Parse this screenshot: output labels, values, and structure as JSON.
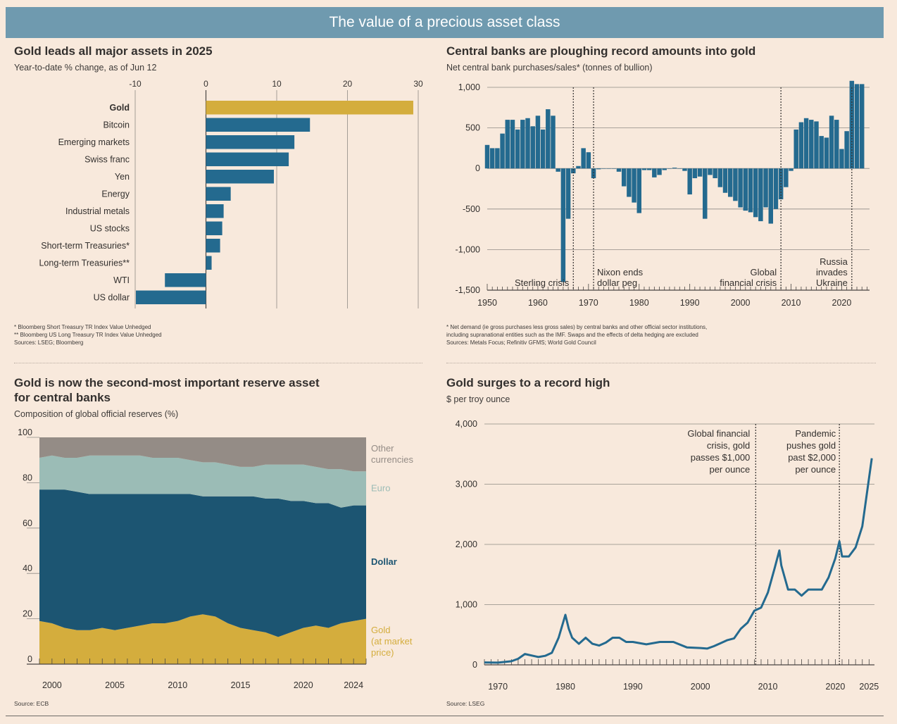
{
  "header": {
    "title": "The value of a precious asset class"
  },
  "colors": {
    "banner": "#6f9aaf",
    "blue": "#246a8f",
    "gold": "#d4ad3d",
    "teal": "#9bbcb6",
    "grey": "#948c86",
    "navy": "#1c5572",
    "background": "#f8e9dc"
  },
  "panels": {
    "assets": {
      "title": "Gold leads all major assets in 2025",
      "subtitle": "Year-to-date % change, as of Jun 12",
      "notes": "* Bloomberg Short Treasury TR Index Value Unhedged\n** Bloomberg US Long Treasury TR Index Value Unhedged\nSources: LSEG; Bloomberg"
    },
    "central": {
      "title": "Central banks are ploughing record amounts into gold",
      "subtitle": "Net central bank purchases/sales* (tonnes of bullion)",
      "notes": "* Net demand (ie gross purchases less gross sales) by central banks and other official sector institutions,\nincluding supranational entities such as the IMF. Swaps and the effects of delta hedging are excluded\nSources: Metals Focus; Refinitiv GFMS; World Gold Council"
    },
    "reserves": {
      "title": "Gold is now the second-most important reserve asset\nfor central banks",
      "subtitle": "Composition of global official reserves (%)",
      "source": "Source: ECB"
    },
    "price": {
      "title": "Gold surges to a record high",
      "subtitle": "$ per troy ounce",
      "source": "Source: LSEG"
    }
  },
  "chart_data": [
    {
      "type": "bar",
      "orientation": "horizontal",
      "title": "Gold leads all major assets in 2025",
      "subtitle": "Year-to-date % change, as of Jun 12",
      "categories": [
        "Gold",
        "Bitcoin",
        "Emerging markets",
        "Swiss franc",
        "Yen",
        "Energy",
        "Industrial metals",
        "US stocks",
        "Short-term Treasuries*",
        "Long-term Treasuries**",
        "WTI",
        "US dollar"
      ],
      "values": [
        29.3,
        14.7,
        12.5,
        11.7,
        9.6,
        3.5,
        2.5,
        2.3,
        2.0,
        0.8,
        -5.8,
        -9.9
      ],
      "xlim": [
        -10,
        30
      ],
      "xticks": [
        -10,
        0,
        10,
        20,
        30
      ],
      "highlight": "Gold"
    },
    {
      "type": "bar",
      "title": "Central banks are ploughing record amounts into gold",
      "subtitle": "Net central bank purchases/sales* (tonnes of bullion)",
      "x": [
        1950,
        1951,
        1952,
        1953,
        1954,
        1955,
        1956,
        1957,
        1958,
        1959,
        1960,
        1961,
        1962,
        1963,
        1964,
        1965,
        1966,
        1967,
        1968,
        1969,
        1970,
        1971,
        1972,
        1973,
        1974,
        1975,
        1976,
        1977,
        1978,
        1979,
        1980,
        1981,
        1982,
        1983,
        1984,
        1985,
        1986,
        1987,
        1988,
        1989,
        1990,
        1991,
        1992,
        1993,
        1994,
        1995,
        1996,
        1997,
        1998,
        1999,
        2000,
        2001,
        2002,
        2003,
        2004,
        2005,
        2006,
        2007,
        2008,
        2009,
        2010,
        2011,
        2012,
        2013,
        2014,
        2015,
        2016,
        2017,
        2018,
        2019,
        2020,
        2021,
        2022,
        2023,
        2024
      ],
      "values": [
        290,
        250,
        250,
        430,
        600,
        600,
        480,
        600,
        620,
        520,
        650,
        480,
        730,
        650,
        -40,
        -1400,
        -620,
        -60,
        30,
        250,
        200,
        -120,
        -10,
        0,
        0,
        0,
        -40,
        -220,
        -350,
        -420,
        -550,
        -20,
        -20,
        -110,
        -80,
        -20,
        0,
        10,
        0,
        -30,
        -320,
        -120,
        -100,
        -620,
        -80,
        -120,
        -230,
        -300,
        -350,
        -400,
        -480,
        -520,
        -540,
        -600,
        -650,
        -480,
        -680,
        -500,
        -380,
        -230,
        -30,
        480,
        570,
        620,
        600,
        580,
        400,
        380,
        650,
        600,
        240,
        460,
        1080,
        1040,
        1040
      ],
      "yticks": [
        1000,
        500,
        0,
        -500,
        -1000,
        -1500
      ],
      "ylim": [
        -1500,
        1000
      ],
      "xticks": [
        1950,
        1960,
        1970,
        1980,
        1990,
        2000,
        2010,
        2020
      ],
      "annotations": [
        {
          "x": 1967,
          "label": "Sterling crisis"
        },
        {
          "x": 1971,
          "label": "Nixon ends\ndollar peg"
        },
        {
          "x": 2008,
          "label": "Global\nfinancial crisis"
        },
        {
          "x": 2022,
          "label": "Russia\ninvades\nUkraine"
        }
      ]
    },
    {
      "type": "area",
      "stacked": true,
      "title": "Gold is now the second-most important reserve asset for central banks",
      "subtitle": "Composition of global official reserves (%)",
      "x": [
        1999,
        2000,
        2001,
        2002,
        2003,
        2004,
        2005,
        2006,
        2007,
        2008,
        2009,
        2010,
        2011,
        2012,
        2013,
        2014,
        2015,
        2016,
        2017,
        2018,
        2019,
        2020,
        2021,
        2022,
        2023,
        2024,
        2025
      ],
      "series": [
        {
          "name": "Gold (at market price)",
          "values": [
            19,
            18,
            16,
            15,
            15,
            16,
            15,
            16,
            17,
            18,
            18,
            19,
            21,
            22,
            21,
            18,
            16,
            15,
            14,
            12,
            14,
            16,
            17,
            16,
            18,
            19,
            20
          ]
        },
        {
          "name": "Dollar",
          "values": [
            58,
            59,
            61,
            61,
            60,
            59,
            60,
            59,
            58,
            57,
            57,
            56,
            54,
            52,
            53,
            56,
            58,
            59,
            59,
            61,
            58,
            56,
            54,
            55,
            51,
            51,
            50
          ]
        },
        {
          "name": "Euro",
          "values": [
            14,
            15,
            14,
            15,
            17,
            17,
            17,
            17,
            17,
            16,
            16,
            16,
            15,
            15,
            15,
            14,
            13,
            13,
            15,
            15,
            16,
            16,
            16,
            15,
            17,
            15,
            15
          ]
        },
        {
          "name": "Other currencies",
          "values": [
            9,
            8,
            9,
            9,
            8,
            8,
            8,
            8,
            8,
            9,
            9,
            9,
            10,
            11,
            11,
            12,
            13,
            13,
            12,
            12,
            12,
            12,
            13,
            14,
            14,
            15,
            15
          ]
        }
      ],
      "ylim": [
        0,
        100
      ],
      "yticks": [
        0,
        20,
        40,
        60,
        80,
        100
      ],
      "xticks": [
        2000,
        2005,
        2010,
        2015,
        2020,
        2024
      ]
    },
    {
      "type": "line",
      "title": "Gold surges to a record high",
      "subtitle": "$ per troy ounce",
      "x": [
        1968,
        1970,
        1972,
        1973,
        1974,
        1976,
        1977,
        1978,
        1979,
        1980,
        1980.5,
        1981,
        1982,
        1983,
        1984,
        1985,
        1986,
        1987,
        1988,
        1989,
        1990,
        1992,
        1994,
        1996,
        1998,
        2000,
        2001,
        2002,
        2003,
        2004,
        2005,
        2006,
        2007,
        2008,
        2009,
        2010,
        2011,
        2011.7,
        2012,
        2013,
        2014,
        2015,
        2016,
        2017,
        2018,
        2019,
        2020,
        2020.6,
        2021,
        2022,
        2023,
        2024,
        2025.4
      ],
      "values": [
        40,
        36,
        60,
        100,
        180,
        130,
        150,
        200,
        450,
        830,
        600,
        450,
        350,
        450,
        350,
        320,
        370,
        450,
        450,
        380,
        380,
        340,
        380,
        380,
        290,
        280,
        270,
        310,
        360,
        410,
        440,
        600,
        700,
        900,
        950,
        1200,
        1600,
        1900,
        1650,
        1250,
        1250,
        1150,
        1250,
        1250,
        1250,
        1450,
        1770,
        2050,
        1800,
        1800,
        1950,
        2300,
        3430
      ],
      "yticks": [
        0,
        1000,
        2000,
        3000,
        4000
      ],
      "ylim": [
        0,
        4000
      ],
      "xticks": [
        1970,
        1980,
        1990,
        2000,
        2010,
        2020,
        2025
      ],
      "annotations": [
        {
          "x": 2008.2,
          "label": "Global financial\ncrisis, gold\npasses $1,000\nper ounce"
        },
        {
          "x": 2020.6,
          "label": "Pandemic\npushes gold\npast $2,000\nper ounce"
        }
      ]
    }
  ]
}
